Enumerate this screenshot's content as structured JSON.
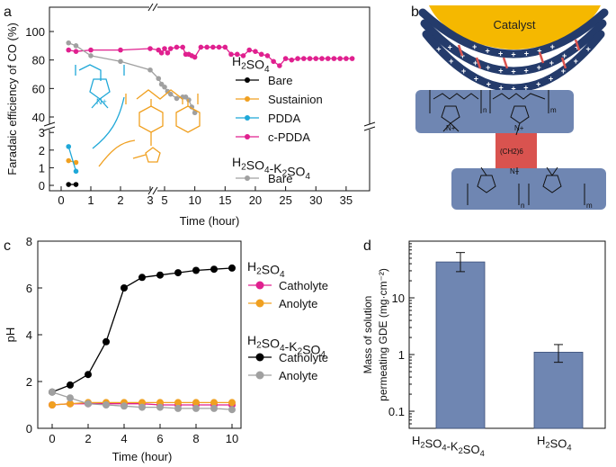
{
  "panel_labels": [
    "a",
    "b",
    "c",
    "d"
  ],
  "colors": {
    "bare": "#000000",
    "sustainion": "#f0a020",
    "pdda": "#1fa8d8",
    "cpdda": "#e0208f",
    "k2so4_bare": "#a0a0a0",
    "catholyte": "#e0208f",
    "anolyte": "#f0a020",
    "k_catholyte": "#000000",
    "k_anolyte": "#a0a0a0",
    "bar_fill": "#6f86b2",
    "catalyst": "#f5b800",
    "polymer_block": "#6f86b2",
    "crosslink": "#d9534f"
  },
  "panel_b": {
    "catalyst_label": "Catalyst",
    "subscript_n": "n",
    "subscript_m": "m",
    "n_plus": "N+",
    "linker": "(CH2)6"
  },
  "chart_data": [
    {
      "panel": "a",
      "type": "line",
      "ylabel": "Faradaic efficiency of CO (%)",
      "xlabel": "Time (hour)",
      "x_ticks": [
        "0",
        "1",
        "2",
        "3",
        "5",
        "10",
        "15",
        "20",
        "25",
        "30",
        "35"
      ],
      "y_ticks_upper": [
        "40",
        "60",
        "80",
        "100"
      ],
      "y_ticks_lower": [
        "0",
        "1",
        "2",
        "3"
      ],
      "x_breaks": [
        3
      ],
      "y_break": {
        "lower_range": [
          0,
          3.2
        ],
        "upper_range": [
          35,
          100
        ]
      },
      "legend_group1": "H2SO4",
      "legend_group2": "H2SO4-K2SO4",
      "series": [
        {
          "name": "Bare",
          "group": "H2SO4",
          "color": "bare",
          "x": [
            0.25,
            0.5
          ],
          "y": [
            0.05,
            0.05
          ]
        },
        {
          "name": "Sustainion",
          "group": "H2SO4",
          "color": "sustainion",
          "x": [
            0.25,
            0.5
          ],
          "y": [
            1.4,
            1.3
          ]
        },
        {
          "name": "PDDA",
          "group": "H2SO4",
          "color": "pdda",
          "x": [
            0.25,
            0.5
          ],
          "y": [
            2.2,
            0.8
          ]
        },
        {
          "name": "c-PDDA",
          "group": "H2SO4",
          "color": "cpdda",
          "x": [
            0.25,
            0.5,
            1,
            2,
            3,
            4,
            4.5,
            5,
            5.5,
            6,
            7,
            8,
            8.5,
            9,
            9.5,
            10,
            11,
            12,
            13,
            14,
            15,
            16,
            17,
            18,
            19,
            20,
            21,
            22,
            23,
            24,
            25,
            26,
            27,
            28,
            29,
            30,
            31,
            32,
            33,
            34,
            35,
            36
          ],
          "y": [
            87,
            86,
            87,
            87,
            88,
            87,
            85,
            88,
            85,
            88,
            89,
            89,
            84,
            84,
            83,
            82,
            89,
            89,
            89,
            89,
            89,
            84,
            84,
            83,
            87,
            86,
            84,
            83,
            79,
            76,
            81,
            80,
            81,
            81,
            81,
            81,
            81,
            81,
            81,
            81,
            81,
            81
          ]
        },
        {
          "name": "Bare",
          "group": "H2SO4-K2SO4",
          "color": "k2so4_bare",
          "x": [
            0.25,
            0.5,
            1,
            2,
            3,
            4,
            4.5,
            5,
            5.5,
            6,
            7,
            8,
            8.5,
            9,
            9.5,
            10
          ],
          "y": [
            92,
            90,
            83,
            79,
            73,
            67,
            63,
            61,
            58,
            56,
            53,
            54,
            54,
            52,
            47,
            43
          ]
        }
      ]
    },
    {
      "panel": "c",
      "type": "line",
      "ylabel": "pH",
      "xlabel": "Time (hour)",
      "xlim": [
        -0.8,
        10.5
      ],
      "ylim": [
        0,
        8
      ],
      "x_ticks": [
        "0",
        "2",
        "4",
        "6",
        "8",
        "10"
      ],
      "y_ticks": [
        "0",
        "2",
        "4",
        "6",
        "8"
      ],
      "legend_group1": "H2SO4",
      "legend_group2": "H2SO4-K2SO4",
      "series": [
        {
          "name": "Catholyte",
          "group": "H2SO4",
          "color": "catholyte",
          "x": [
            0,
            1,
            2,
            3,
            4,
            5,
            6,
            7,
            8,
            9,
            10
          ],
          "y": [
            1.0,
            1.05,
            1.05,
            1.05,
            1.05,
            1.05,
            1.0,
            1.0,
            1.0,
            1.0,
            1.0
          ]
        },
        {
          "name": "Anolyte",
          "group": "H2SO4",
          "color": "anolyte",
          "x": [
            0,
            1,
            2,
            3,
            4,
            5,
            6,
            7,
            8,
            9,
            10
          ],
          "y": [
            1.0,
            1.05,
            1.1,
            1.1,
            1.1,
            1.1,
            1.1,
            1.1,
            1.1,
            1.1,
            1.1
          ]
        },
        {
          "name": "Catholyte",
          "group": "H2SO4-K2SO4",
          "color": "k_catholyte",
          "x": [
            0,
            1,
            2,
            3,
            4,
            5,
            6,
            7,
            8,
            9,
            10
          ],
          "y": [
            1.55,
            1.85,
            2.3,
            3.7,
            6.0,
            6.45,
            6.55,
            6.65,
            6.75,
            6.8,
            6.85
          ]
        },
        {
          "name": "Anolyte",
          "group": "H2SO4-K2SO4",
          "color": "k_anolyte",
          "x": [
            0,
            1,
            2,
            3,
            4,
            5,
            6,
            7,
            8,
            9,
            10
          ],
          "y": [
            1.55,
            1.3,
            1.05,
            1.0,
            0.95,
            0.9,
            0.9,
            0.85,
            0.85,
            0.85,
            0.8
          ]
        }
      ]
    },
    {
      "panel": "d",
      "type": "bar",
      "ylabel_line1": "Mass of solution",
      "ylabel_line2": "permeating GDE (mg·cm⁻²)",
      "yscale": "log",
      "ylim": [
        0.05,
        100
      ],
      "y_ticks": [
        "0.1",
        "1",
        "10"
      ],
      "categories": [
        "H2SO4-K2SO4",
        "H2SO4"
      ],
      "values": [
        43,
        1.1
      ],
      "error": [
        [
          29,
          63
        ],
        [
          0.73,
          1.5
        ]
      ]
    }
  ]
}
